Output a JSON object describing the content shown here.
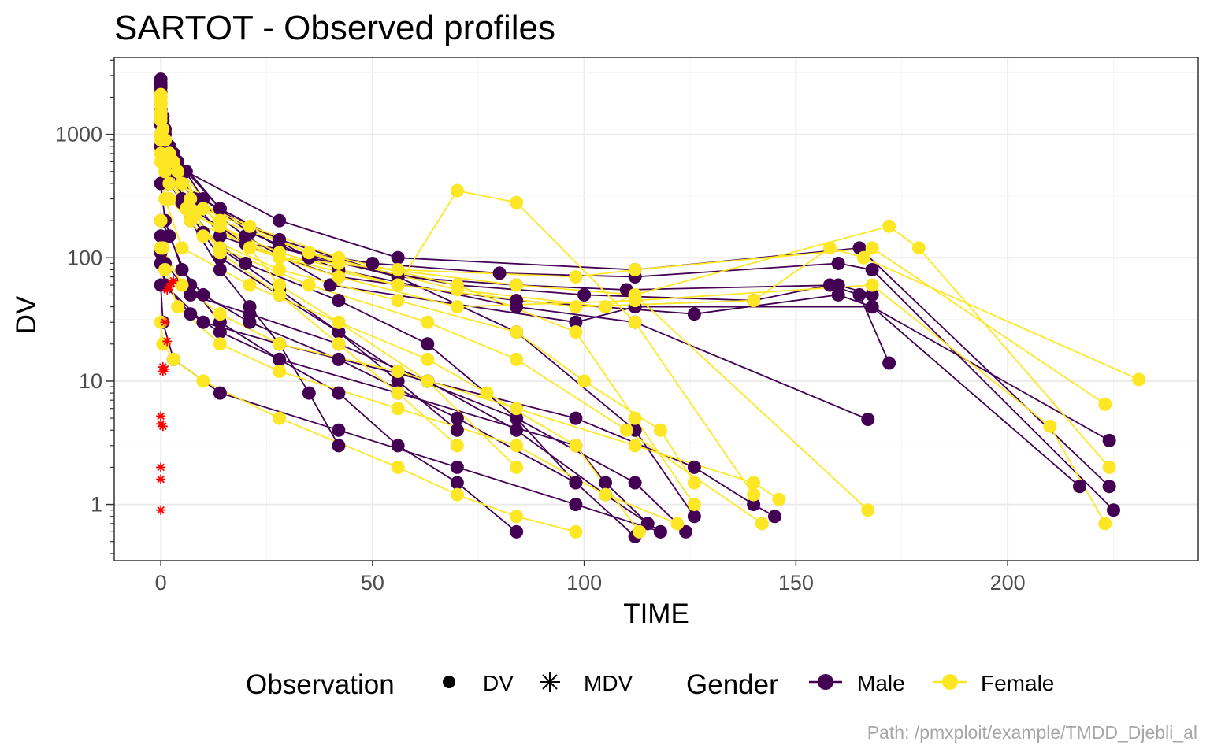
{
  "chart_data": {
    "type": "line",
    "title": "SARTOT - Observed profiles",
    "xlabel": "TIME",
    "ylabel": "DV",
    "caption": "Path: /pmxploit/example/TMDD_Djebli_al",
    "xlim": [
      -11,
      245
    ],
    "ylim": [
      0.35,
      4200
    ],
    "yscale": "log10",
    "x_ticks": [
      0,
      50,
      100,
      150,
      200
    ],
    "y_ticks": [
      1,
      10,
      100,
      1000
    ],
    "x_tick_labels": [
      "0",
      "50",
      "100",
      "150",
      "200"
    ],
    "y_tick_labels": [
      "1",
      "10",
      "100",
      "1000"
    ],
    "grid": true,
    "legend_position": "bottom",
    "legends": {
      "observation": {
        "title": "Observation",
        "entries": [
          {
            "label": "DV",
            "shape": "filled-circle"
          },
          {
            "label": "MDV",
            "shape": "asterisk"
          }
        ]
      },
      "gender": {
        "title": "Gender",
        "entries": [
          {
            "label": "Male",
            "color": "#440154"
          },
          {
            "label": "Female",
            "color": "#FDE725"
          }
        ]
      }
    },
    "colors": {
      "Male": "#440154",
      "Female": "#FDE725",
      "MDV": "#FF0000"
    },
    "series": [
      {
        "name": "Male",
        "color": "#440154",
        "profiles": [
          {
            "x": [
              0,
              0.5,
              2,
              5,
              14,
              28,
              42,
              56,
              70
            ],
            "y": [
              2600,
              1400,
              800,
              300,
              120,
              55,
              25,
              10,
              4
            ]
          },
          {
            "x": [
              0,
              1,
              3,
              7,
              14,
              21,
              28,
              35,
              42
            ],
            "y": [
              2200,
              1000,
              500,
              200,
              80,
              40,
              20,
              8,
              3
            ]
          },
          {
            "x": [
              0,
              0.5,
              2,
              10,
              20,
              42,
              63,
              84,
              98
            ],
            "y": [
              1800,
              900,
              400,
              160,
              90,
              45,
              20,
              5,
              1.5
            ]
          },
          {
            "x": [
              0,
              1,
              4,
              14,
              28,
              56,
              84,
              112,
              126
            ],
            "y": [
              2400,
              1100,
              600,
              250,
              140,
              70,
              25,
              4,
              0.8
            ]
          },
          {
            "x": [
              0,
              2,
              7,
              14,
              28,
              42,
              56,
              70,
              84
            ],
            "y": [
              200,
              150,
              60,
              30,
              15,
              8,
              3,
              1.5,
              0.6
            ]
          },
          {
            "x": [
              0,
              1,
              7,
              21,
              42,
              63,
              84,
              105,
              118
            ],
            "y": [
              150,
              90,
              50,
              35,
              20,
              10,
              4,
              1.2,
              0.6
            ]
          },
          {
            "x": [
              0,
              2,
              10,
              28,
              56,
              84,
              110,
              160,
              168
            ],
            "y": [
              2000,
              800,
              300,
              120,
              70,
              60,
              55,
              60,
              50
            ]
          },
          {
            "x": [
              0,
              1,
              5,
              20,
              50,
              80,
              112,
              160,
              168,
              225
            ],
            "y": [
              2500,
              900,
              280,
              130,
              90,
              75,
              70,
              90,
              80,
              0.9
            ]
          },
          {
            "x": [
              0,
              3,
              14,
              35,
              70,
              100,
              140,
              158,
              165,
              172
            ],
            "y": [
              1600,
              700,
              250,
              100,
              60,
              50,
              45,
              60,
              50,
              14
            ]
          },
          {
            "x": [
              0,
              1,
              10,
              28,
              63,
              98,
              126,
              140,
              145
            ],
            "y": [
              90,
              60,
              30,
              20,
              10,
              5,
              2,
              1,
              0.8
            ]
          },
          {
            "x": [
              0,
              0.5,
              3,
              14,
              42,
              70,
              98,
              118
            ],
            "y": [
              60,
              30,
              15,
              8,
              4,
              2,
              1,
              0.6
            ]
          },
          {
            "x": [
              0,
              2,
              6,
              28,
              56,
              112,
              165,
              224
            ],
            "y": [
              1200,
              800,
              500,
              200,
              100,
              80,
              120,
              1.4
            ]
          },
          {
            "x": [
              0,
              1,
              8,
              20,
              40,
              98,
              112,
              168,
              217
            ],
            "y": [
              1000,
              600,
              300,
              150,
              60,
              30,
              40,
              40,
              1.4
            ]
          },
          {
            "x": [
              0,
              0.5,
              5,
              21,
              42,
              84,
              112,
              167
            ],
            "y": [
              2800,
              1300,
              400,
              160,
              80,
              40,
              30,
              4.9
            ]
          },
          {
            "x": [
              0,
              3,
              14,
              42,
              84,
              126,
              160,
              168,
              224
            ],
            "y": [
              1500,
              500,
              150,
              70,
              45,
              35,
              50,
              40,
              3.3
            ]
          },
          {
            "x": [
              0,
              1,
              7,
              14,
              28,
              56,
              98,
              105,
              115
            ],
            "y": [
              110,
              60,
              35,
              25,
              15,
              8,
              3,
              1.5,
              0.7
            ]
          },
          {
            "x": [
              0,
              2,
              14,
              28,
              42,
              56,
              84,
              112,
              124
            ],
            "y": [
              800,
              400,
              100,
              50,
              25,
              12,
              5,
              1.5,
              0.6
            ]
          },
          {
            "x": [
              0,
              1,
              5,
              10,
              21,
              42,
              70,
              98,
              112
            ],
            "y": [
              400,
              200,
              80,
              50,
              30,
              15,
              5,
              1.5,
              0.55
            ]
          }
        ]
      },
      {
        "name": "Female",
        "color": "#FDE725",
        "profiles": [
          {
            "x": [
              0,
              0.5,
              2,
              7,
              14,
              28,
              42,
              56,
              70
            ],
            "y": [
              2000,
              1100,
              600,
              250,
              110,
              50,
              20,
              8,
              3
            ]
          },
          {
            "x": [
              0,
              1,
              4,
              10,
              21,
              28,
              42,
              63,
              84
            ],
            "y": [
              1800,
              900,
              500,
              250,
              120,
              60,
              30,
              10,
              2
            ]
          },
          {
            "x": [
              0,
              2,
              7,
              21,
              42,
              70,
              98,
              112,
              126
            ],
            "y": [
              1500,
              700,
              300,
              180,
              100,
              60,
              25,
              5,
              1
            ]
          },
          {
            "x": [
              0,
              1,
              5,
              14,
              28,
              56,
              98,
              112,
              168,
              223
            ],
            "y": [
              2100,
              900,
              400,
              180,
              100,
              80,
              70,
              80,
              120,
              6.5
            ]
          },
          {
            "x": [
              0,
              3,
              14,
              42,
              84,
              112,
              172,
              179,
              224
            ],
            "y": [
              1700,
              600,
              200,
              90,
              60,
              50,
              180,
              120,
              2
            ]
          },
          {
            "x": [
              0,
              1,
              8,
              28,
              56,
              98,
              140,
              158,
              166,
              231
            ],
            "y": [
              1300,
              500,
              220,
              110,
              60,
              40,
              45,
              120,
              100,
              10.3
            ]
          },
          {
            "x": [
              0,
              2,
              10,
              35,
              70,
              105,
              112,
              167
            ],
            "y": [
              1900,
              700,
              250,
              110,
              55,
              40,
              50,
              0.9
            ]
          },
          {
            "x": [
              0,
              1,
              6,
              21,
              42,
              70,
              112,
              168,
              210,
              223
            ],
            "y": [
              1400,
              600,
              250,
              120,
              70,
              40,
              45,
              60,
              4.3,
              0.7
            ]
          },
          {
            "x": [
              0,
              0.5,
              5,
              14,
              28,
              56,
              84,
              112,
              140,
              146
            ],
            "y": [
              200,
              120,
              60,
              35,
              20,
              12,
              6,
              3,
              1.5,
              1.1
            ]
          },
          {
            "x": [
              0,
              1,
              4,
              14,
              28,
              56,
              84,
              105,
              122
            ],
            "y": [
              120,
              80,
              40,
              20,
              12,
              6,
              3,
              1.2,
              0.7
            ]
          },
          {
            "x": [
              0,
              0.5,
              3,
              10,
              28,
              56,
              70,
              84,
              98
            ],
            "y": [
              30,
              20,
              15,
              10,
              5,
              2,
              1.2,
              0.8,
              0.6
            ]
          },
          {
            "x": [
              0,
              2,
              14,
              35,
              63,
              84,
              110,
              142
            ],
            "y": [
              900,
              400,
              120,
              60,
              30,
              15,
              4,
              0.7
            ]
          },
          {
            "x": [
              0,
              1,
              7,
              28,
              56,
              70,
              84,
              112,
              140
            ],
            "y": [
              1000,
              500,
              200,
              100,
              60,
              350,
              280,
              30,
              1.2
            ]
          },
          {
            "x": [
              0,
              1,
              5,
              21,
              42,
              63,
              77,
              98,
              113
            ],
            "y": [
              600,
              300,
              120,
              60,
              30,
              15,
              8,
              3,
              0.6
            ]
          },
          {
            "x": [
              0,
              2,
              10,
              28,
              56,
              84,
              100,
              118,
              126
            ],
            "y": [
              700,
              300,
              150,
              80,
              45,
              25,
              10,
              4,
              1.5
            ]
          }
        ]
      }
    ],
    "mdv_points": {
      "x": [
        0,
        0,
        0,
        0,
        0,
        0.5,
        0.5,
        0.5,
        1,
        1,
        1.5,
        1.5,
        2,
        2.5,
        3
      ],
      "y": [
        0.9,
        1.6,
        2.0,
        4.5,
        5.2,
        4.3,
        12,
        13,
        12.5,
        30,
        21,
        55,
        58,
        62,
        65
      ]
    }
  }
}
